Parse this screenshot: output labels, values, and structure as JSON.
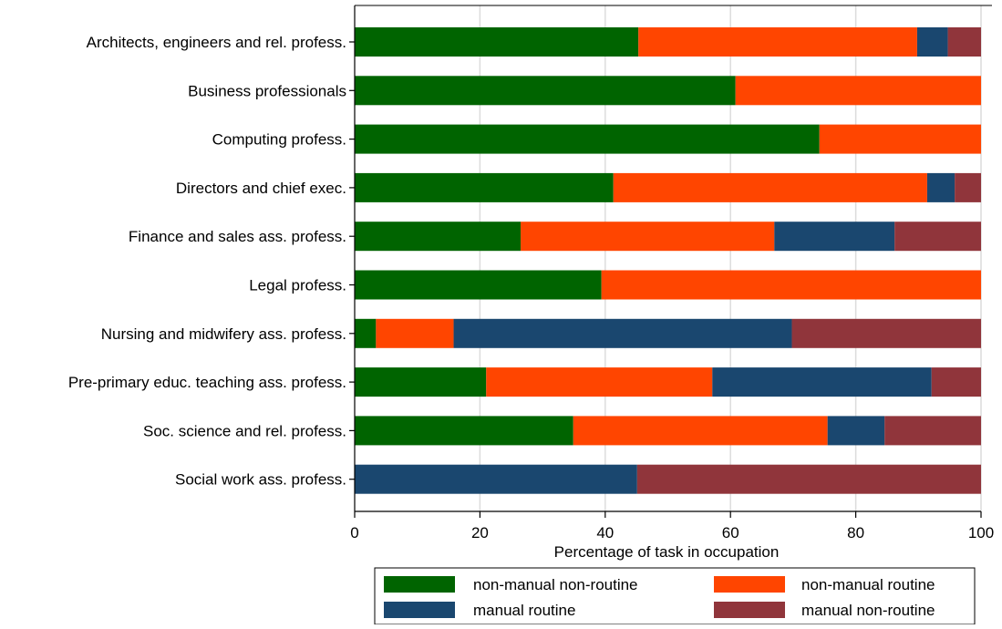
{
  "chart_data": {
    "type": "bar",
    "orientation": "horizontal",
    "stacked": true,
    "title": "",
    "xlabel": "Percentage of task in occupation",
    "ylabel": "",
    "xlim": [
      0,
      100
    ],
    "xticks": [
      0,
      20,
      40,
      60,
      80,
      100
    ],
    "grid": true,
    "legend_position": "bottom",
    "categories": [
      "Architects, engineers and rel. profess.",
      "Business professionals",
      "Computing profess.",
      "Directors and chief exec.",
      "Finance and sales ass. profess.",
      "Legal profess.",
      "Nursing and midwifery ass. profess.",
      "Pre-primary educ. teaching ass. profess.",
      "Soc. science and rel. profess.",
      "Social work ass. profess."
    ],
    "series": [
      {
        "name": "non-manual non-routine",
        "color": "#006400",
        "values": [
          45.3,
          60.8,
          74.2,
          41.3,
          26.5,
          39.4,
          3.4,
          21.0,
          34.9,
          0.0
        ]
      },
      {
        "name": "non-manual routine",
        "color": "#ff4500",
        "values": [
          44.5,
          39.2,
          25.8,
          50.1,
          40.5,
          60.6,
          12.4,
          36.1,
          40.6,
          0.0
        ]
      },
      {
        "name": "manual routine",
        "color": "#1a476f",
        "values": [
          4.9,
          0.0,
          0.0,
          4.4,
          19.2,
          0.0,
          54.0,
          35.0,
          9.1,
          45.1
        ]
      },
      {
        "name": "manual non-routine",
        "color": "#90353b",
        "values": [
          5.3,
          0.0,
          0.0,
          4.2,
          13.8,
          0.0,
          30.2,
          7.9,
          15.4,
          54.9
        ]
      }
    ],
    "legend": [
      {
        "label": "non-manual non-routine",
        "color": "#006400"
      },
      {
        "label": "non-manual routine",
        "color": "#ff4500"
      },
      {
        "label": "manual routine",
        "color": "#1a476f"
      },
      {
        "label": "manual non-routine",
        "color": "#90353b"
      }
    ]
  }
}
